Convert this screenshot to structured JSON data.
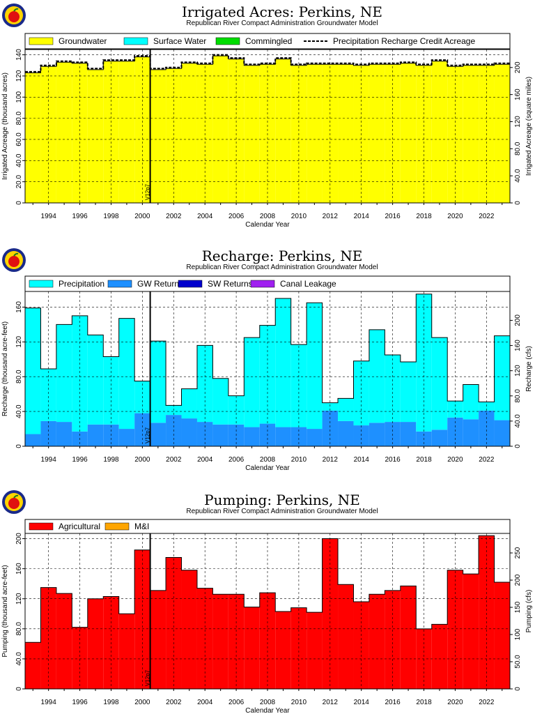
{
  "chart_data": [
    {
      "type": "bar",
      "title": "Irrigated Acres: Perkins, NE",
      "subtitle": "Republican River Compact Administration Groundwater Model",
      "xlabel": "Calendar Year",
      "ylabel": "Irrigated Acreage (thousand acres)",
      "ylabel_right": "Irrigated Acreage (square miles)",
      "x": [
        1993,
        1994,
        1995,
        1996,
        1997,
        1998,
        1999,
        2000,
        2001,
        2002,
        2003,
        2004,
        2005,
        2006,
        2007,
        2008,
        2009,
        2010,
        2011,
        2012,
        2013,
        2014,
        2015,
        2016,
        2017,
        2018,
        2019,
        2020,
        2021,
        2022,
        2023
      ],
      "xlim": [
        1992.5,
        2023.5
      ],
      "ylim": [
        0,
        145
      ],
      "ylim_right": [
        0,
        226.56
      ],
      "yticks": [
        "0",
        "20.0",
        "40.0",
        "60.0",
        "80.0",
        "100",
        "120",
        "140"
      ],
      "yticks_right": [
        "0",
        "40.0",
        "80.0",
        "120",
        "160",
        "200"
      ],
      "xticks": [
        "1994",
        "1996",
        "1998",
        "2000",
        "2002",
        "2004",
        "2006",
        "2008",
        "2010",
        "2012",
        "2014",
        "2016",
        "2018",
        "2020",
        "2022"
      ],
      "legend": [
        "Groundwater",
        "Surface Water",
        "Commingled",
        "Precipitation Recharge Credit Acreage"
      ],
      "series": [
        {
          "name": "Groundwater",
          "color": "#ffff00",
          "values": [
            123,
            129,
            133,
            132,
            126,
            134,
            134,
            138,
            126,
            127,
            132,
            131,
            139,
            136,
            130,
            131,
            136,
            130,
            131,
            131,
            131,
            130,
            131,
            131,
            132,
            130,
            134,
            129,
            130,
            130,
            131
          ]
        },
        {
          "name": "Surface Water",
          "color": "#00ffff",
          "values": [
            0,
            0,
            0,
            0,
            0,
            0,
            0,
            0,
            0,
            0,
            0,
            0,
            0,
            0,
            0,
            0,
            0,
            0,
            0,
            0,
            0,
            0,
            0,
            0,
            0,
            0,
            0,
            0,
            0,
            0,
            0
          ]
        },
        {
          "name": "Commingled",
          "color": "#00dd00",
          "values": [
            0,
            0,
            0,
            0,
            0,
            0,
            0,
            0,
            0,
            0,
            0,
            0,
            0,
            0,
            0,
            0,
            0,
            0,
            0,
            0,
            0,
            0,
            0,
            0,
            0,
            0,
            0,
            0,
            0,
            0,
            0
          ]
        },
        {
          "name": "Precipitation Recharge Credit Acreage",
          "color": "#000000",
          "line": true,
          "values": [
            124,
            130,
            134,
            133,
            127,
            135,
            135,
            139,
            127,
            128,
            133,
            132,
            140,
            137,
            131,
            132,
            137,
            131,
            132,
            132,
            132,
            131,
            132,
            132,
            133,
            131,
            135,
            130,
            131,
            131,
            132
          ]
        }
      ],
      "marker": {
        "label": "V12p7",
        "x": 2000.5
      },
      "grid": true,
      "legend_placement": "top"
    },
    {
      "type": "bar",
      "title": "Recharge: Perkins, NE",
      "subtitle": "Republican River Compact Administration Groundwater Model",
      "xlabel": "Calendar Year",
      "ylabel": "Recharge (thousand acre-feet)",
      "ylabel_right": "Recharge (cfs)",
      "x": [
        1993,
        1994,
        1995,
        1996,
        1997,
        1998,
        1999,
        2000,
        2001,
        2002,
        2003,
        2004,
        2005,
        2006,
        2007,
        2008,
        2009,
        2010,
        2011,
        2012,
        2013,
        2014,
        2015,
        2016,
        2017,
        2018,
        2019,
        2020,
        2021,
        2022,
        2023
      ],
      "xlim": [
        1992.5,
        2023.5
      ],
      "ylim": [
        0,
        178
      ],
      "ylim_right": [
        0,
        245.9
      ],
      "yticks": [
        "0",
        "40.0",
        "80.0",
        "120",
        "160"
      ],
      "yticks_right": [
        "0",
        "40.0",
        "80.0",
        "120",
        "160",
        "200"
      ],
      "xticks": [
        "1994",
        "1996",
        "1998",
        "2000",
        "2002",
        "2004",
        "2006",
        "2008",
        "2010",
        "2012",
        "2014",
        "2016",
        "2018",
        "2020",
        "2022"
      ],
      "legend": [
        "Precipitation",
        "GW Returns",
        "SW Returns",
        "Canal Leakage"
      ],
      "series": [
        {
          "name": "GW Returns",
          "color": "#1e90ff",
          "values": [
            14,
            29,
            28,
            17,
            25,
            25,
            20,
            38,
            27,
            36,
            32,
            28,
            25,
            25,
            22,
            26,
            22,
            22,
            20,
            41,
            29,
            24,
            27,
            28,
            28,
            17,
            19,
            33,
            31,
            41,
            30
          ]
        },
        {
          "name": "Precipitation",
          "color": "#00ffff",
          "values": [
            145,
            60,
            112,
            133,
            103,
            78,
            127,
            37,
            94,
            11,
            34,
            88,
            53,
            33,
            103,
            113,
            148,
            95,
            145,
            9,
            26,
            74,
            107,
            77,
            69,
            158,
            106,
            19,
            40,
            10,
            97
          ]
        },
        {
          "name": "SW Returns",
          "color": "#0000cd",
          "values": [
            0,
            0,
            0,
            0,
            0,
            0,
            0,
            0,
            0,
            0,
            0,
            0,
            0,
            0,
            0,
            0,
            0,
            0,
            0,
            0,
            0,
            0,
            0,
            0,
            0,
            0,
            0,
            0,
            0,
            0,
            0
          ]
        },
        {
          "name": "Canal Leakage",
          "color": "#a020f0",
          "values": [
            0,
            0,
            0,
            0,
            0,
            0,
            0,
            0,
            0,
            0,
            0,
            0,
            0,
            0,
            0,
            0,
            0,
            0,
            0,
            0,
            0,
            0,
            0,
            0,
            0,
            0,
            0,
            0,
            0,
            0,
            0
          ]
        }
      ],
      "marker": {
        "label": "V12p7",
        "x": 2000.5
      },
      "grid": true,
      "legend_placement": "top"
    },
    {
      "type": "bar",
      "title": "Pumping: Perkins, NE",
      "subtitle": "Republican River Compact Administration Groundwater Model",
      "xlabel": "Calendar Year",
      "ylabel": "Pumping (thousand acre-feet)",
      "ylabel_right": "Pumping (cfs)",
      "x": [
        1993,
        1994,
        1995,
        1996,
        1997,
        1998,
        1999,
        2000,
        2001,
        2002,
        2003,
        2004,
        2005,
        2006,
        2007,
        2008,
        2009,
        2010,
        2011,
        2012,
        2013,
        2014,
        2015,
        2016,
        2017,
        2018,
        2019,
        2020,
        2021,
        2022,
        2023
      ],
      "xlim": [
        1992.5,
        2023.5
      ],
      "ylim": [
        0,
        207
      ],
      "ylim_right": [
        0,
        285.9
      ],
      "yticks": [
        "0",
        "40.0",
        "80.0",
        "120",
        "160",
        "200"
      ],
      "yticks_right": [
        "0",
        "50.0",
        "100",
        "150",
        "200",
        "250"
      ],
      "xticks": [
        "1994",
        "1996",
        "1998",
        "2000",
        "2002",
        "2004",
        "2006",
        "2008",
        "2010",
        "2012",
        "2014",
        "2016",
        "2018",
        "2020",
        "2022"
      ],
      "legend": [
        "Agricultural",
        "M&I"
      ],
      "series": [
        {
          "name": "Agricultural",
          "color": "#ff0000",
          "values": [
            62,
            135,
            127,
            82,
            120,
            123,
            100,
            185,
            131,
            175,
            158,
            134,
            126,
            126,
            109,
            128,
            103,
            108,
            102,
            200,
            139,
            116,
            126,
            131,
            137,
            80,
            86,
            158,
            153,
            204,
            142
          ]
        },
        {
          "name": "M&I",
          "color": "#ffa500",
          "values": [
            0,
            0,
            0,
            0,
            0,
            0,
            0,
            0,
            0,
            0,
            0,
            0,
            0,
            0,
            0,
            0,
            0,
            0,
            0,
            0,
            0,
            0,
            0,
            0,
            0,
            0,
            0,
            0,
            0,
            0,
            0
          ]
        }
      ],
      "marker": {
        "label": "V12p7",
        "x": 2000.5
      },
      "grid": true,
      "legend_placement": "top"
    }
  ]
}
